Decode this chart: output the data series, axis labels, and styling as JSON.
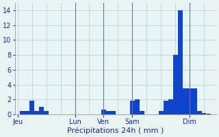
{
  "title": "",
  "xlabel": "Précipitations 24h ( mm )",
  "ylabel": "",
  "background_color": "#e8f4f4",
  "bar_color": "#1144cc",
  "grid_color": "#b0cccc",
  "tick_color": "#2222aa",
  "label_color": "#2222aa",
  "ylim": [
    0,
    15
  ],
  "yticks": [
    0,
    2,
    4,
    6,
    8,
    10,
    12,
    14
  ],
  "xlabel_fontsize": 8,
  "tick_fontsize": 7,
  "n_slots": 84,
  "bar_positions": [
    3,
    5,
    7,
    9,
    11,
    13,
    37,
    39,
    41,
    49,
    51,
    53,
    61,
    63,
    65,
    67,
    69,
    71,
    73,
    75,
    77,
    79,
    81
  ],
  "bar_values": [
    0.5,
    0.5,
    1.8,
    0.5,
    1.0,
    0.5,
    0.6,
    0.5,
    0.5,
    1.8,
    2.0,
    0.5,
    0.5,
    1.8,
    2.0,
    8.0,
    14.0,
    3.5,
    3.5,
    3.5,
    0.5,
    0.2,
    0.1
  ],
  "day_tick_positions": [
    1,
    25,
    37,
    49,
    73
  ],
  "day_labels": [
    "Jeu",
    "Lun",
    "Ven",
    "Sam",
    "Dim"
  ],
  "vline_positions": [
    25,
    37,
    49,
    73
  ],
  "grid_xticks": [
    1,
    7,
    13,
    19,
    25,
    31,
    37,
    43,
    49,
    55,
    61,
    67,
    73,
    79
  ]
}
